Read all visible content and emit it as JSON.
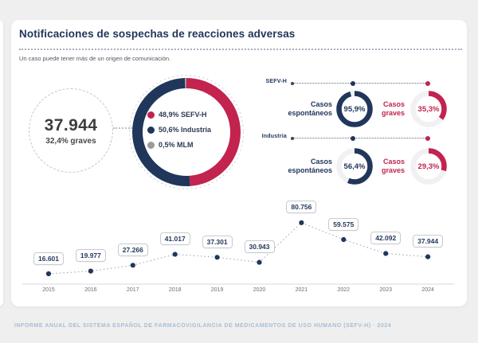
{
  "colors": {
    "navy": "#21365B",
    "crimson": "#C2234F",
    "mlm_gray": "#9B9B9B",
    "gauge_track": "#F1F1F3",
    "footer_blue": "#A7BED2",
    "page_background": "#EFEFF0"
  },
  "header": {
    "title": "Notificaciones de sospechas de reacciones adversas",
    "subtitle": "Un caso puede tener más de un origen de comunicación."
  },
  "summary": {
    "total": "37.944",
    "graves_pct": "32,4% graves"
  },
  "chart_data": [
    {
      "type": "pie",
      "name": "origen-de-notificaciones",
      "donut": true,
      "slices": [
        {
          "label": "48,9% SEFV-H",
          "value": 48.9,
          "color": "#C2234F"
        },
        {
          "label": "50,6% Industria",
          "value": 50.6,
          "color": "#21365B"
        },
        {
          "label": "0,5% MLM",
          "value": 0.5,
          "color": "#9B9B9B"
        }
      ],
      "legend_position": "center"
    },
    {
      "type": "donut-gauge",
      "name": "casos-por-origen",
      "rows": [
        {
          "group": "SEFV-H",
          "spontaneous": {
            "label": "Casos espontáneos",
            "pct_label": "95,9%",
            "value": 95.9,
            "color": "#21365B"
          },
          "serious": {
            "label": "Casos graves",
            "pct_label": "35,3%",
            "value": 35.3,
            "color": "#C2234F"
          }
        },
        {
          "group": "Industria",
          "spontaneous": {
            "label": "Casos espontáneos",
            "pct_label": "56,4%",
            "value": 56.4,
            "color": "#21365B"
          },
          "serious": {
            "label": "Casos graves",
            "pct_label": "29,3%",
            "value": 29.3,
            "color": "#C2234F"
          }
        }
      ]
    },
    {
      "type": "line",
      "name": "evolucion-anual",
      "categories": [
        "2015",
        "2016",
        "2017",
        "2018",
        "2019",
        "2020",
        "2021",
        "2022",
        "2023",
        "2024"
      ],
      "values": [
        16601,
        19977,
        27266,
        41017,
        37301,
        30943,
        80756,
        59575,
        42092,
        37944
      ],
      "point_labels": [
        "16.601",
        "19.977",
        "27.266",
        "41.017",
        "37.301",
        "30.943",
        "80.756",
        "59.575",
        "42.092",
        "37.944"
      ],
      "line_style": "dotted",
      "grid": false,
      "marker_color": "#21365B",
      "ylim": [
        0,
        90000
      ]
    }
  ],
  "footer": {
    "text": "INFORME ANUAL DEL SISTEMA ESPAÑOL DE FARMACOVIGILANCIA DE MEDICAMENTOS DE USO HUMANO (SEFV-H) · 2024"
  }
}
